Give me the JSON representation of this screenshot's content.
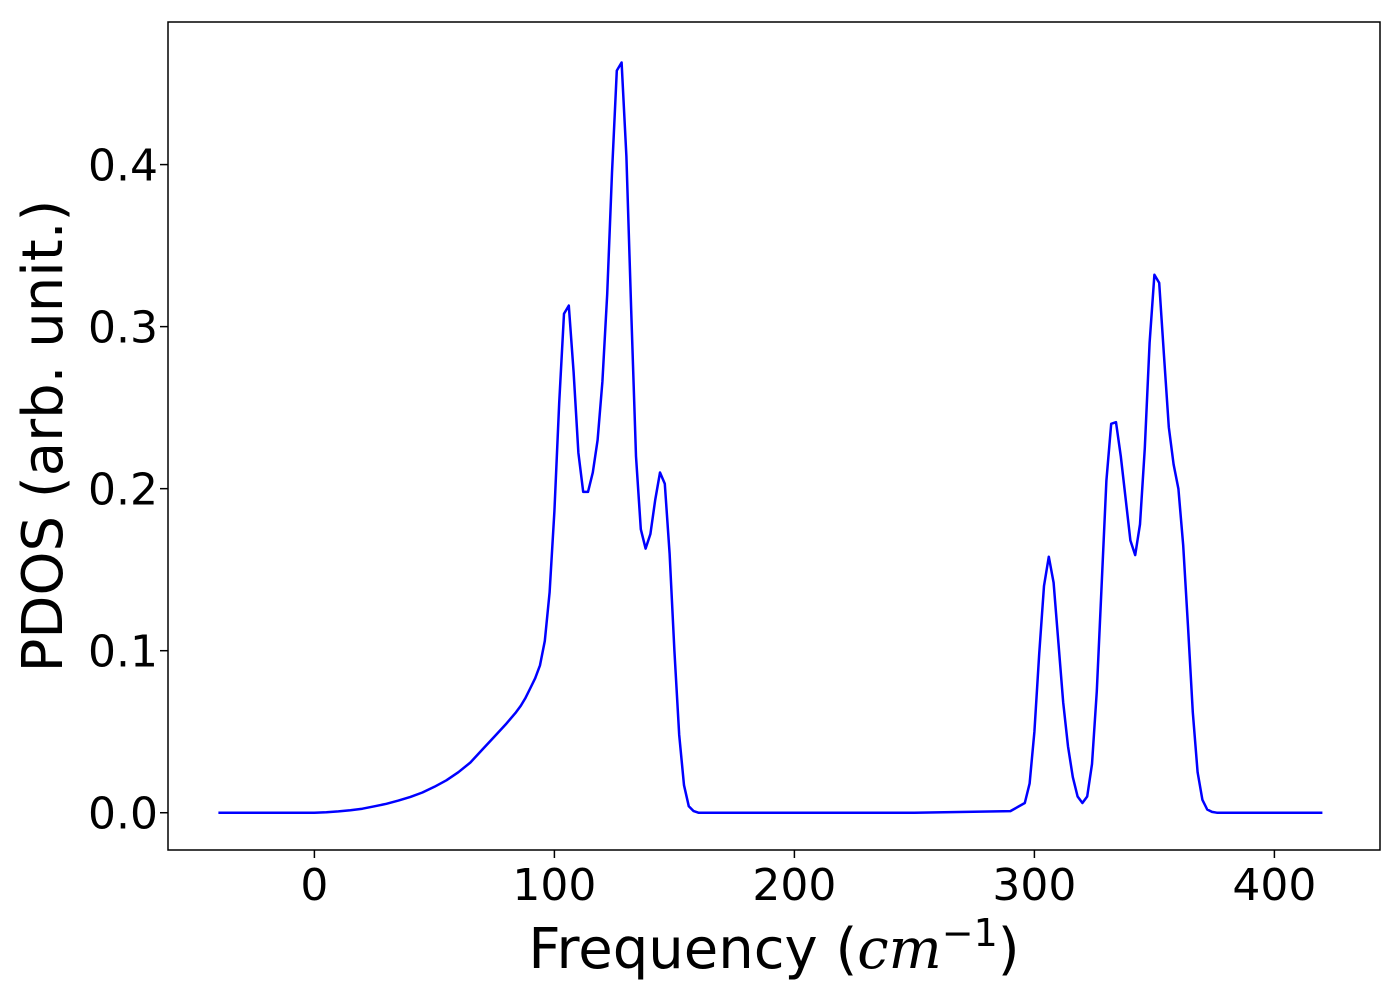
{
  "chart_data": {
    "type": "line",
    "xlabel_prefix": "Frequency (",
    "xlabel_unit": "cm",
    "xlabel_exponent": "−1",
    "xlabel_suffix": ")",
    "ylabel": "PDOS (arb. unit.)",
    "xlim": [
      -61,
      444
    ],
    "ylim": [
      -0.023,
      0.488
    ],
    "xticks": [
      0,
      100,
      200,
      300,
      400
    ],
    "xtick_labels": [
      "0",
      "100",
      "200",
      "300",
      "400"
    ],
    "yticks": [
      0.0,
      0.1,
      0.2,
      0.3,
      0.4
    ],
    "ytick_labels": [
      "0.0",
      "0.1",
      "0.2",
      "0.3",
      "0.4"
    ],
    "grid": false,
    "series": [
      {
        "color": "#0000ff",
        "x": [
          -40,
          -20,
          0,
          5,
          10,
          15,
          20,
          25,
          30,
          35,
          40,
          45,
          50,
          55,
          60,
          65,
          70,
          75,
          80,
          84,
          86,
          88,
          90,
          92,
          94,
          96,
          98,
          100,
          102,
          104,
          106,
          108,
          110,
          112,
          114,
          116,
          118,
          120,
          122,
          124,
          126,
          128,
          130,
          132,
          134,
          136,
          138,
          140,
          142,
          144,
          146,
          148,
          150,
          152,
          154,
          156,
          158,
          160,
          162,
          164,
          166,
          168,
          170,
          180,
          200,
          250,
          290,
          296,
          298,
          300,
          302,
          304,
          306,
          308,
          310,
          312,
          314,
          316,
          318,
          320,
          322,
          324,
          326,
          328,
          330,
          332,
          334,
          336,
          338,
          340,
          342,
          344,
          346,
          348,
          350,
          352,
          354,
          356,
          358,
          360,
          362,
          364,
          366,
          368,
          370,
          372,
          374,
          376,
          378,
          380,
          382,
          384,
          386,
          388,
          390,
          392,
          394,
          396,
          398,
          400,
          410,
          420
        ],
        "y": [
          0,
          0,
          0,
          0.0003,
          0.0008,
          0.0015,
          0.0025,
          0.004,
          0.0055,
          0.0075,
          0.0098,
          0.0125,
          0.016,
          0.02,
          0.025,
          0.031,
          0.039,
          0.047,
          0.055,
          0.062,
          0.066,
          0.071,
          0.077,
          0.083,
          0.091,
          0.106,
          0.136,
          0.186,
          0.253,
          0.308,
          0.313,
          0.272,
          0.222,
          0.198,
          0.198,
          0.21,
          0.23,
          0.266,
          0.32,
          0.395,
          0.458,
          0.463,
          0.405,
          0.31,
          0.22,
          0.175,
          0.163,
          0.172,
          0.193,
          0.21,
          0.203,
          0.16,
          0.1,
          0.048,
          0.017,
          0.004,
          0.001,
          0,
          0,
          0,
          0,
          0,
          0,
          0,
          0,
          0,
          0.001,
          0.006,
          0.018,
          0.05,
          0.098,
          0.14,
          0.158,
          0.142,
          0.105,
          0.068,
          0.041,
          0.022,
          0.01,
          0.006,
          0.01,
          0.03,
          0.075,
          0.14,
          0.205,
          0.24,
          0.241,
          0.22,
          0.194,
          0.168,
          0.159,
          0.178,
          0.225,
          0.29,
          0.332,
          0.327,
          0.282,
          0.238,
          0.215,
          0.2,
          0.165,
          0.115,
          0.062,
          0.025,
          0.008,
          0.002,
          0.0005,
          0,
          0,
          0,
          0,
          0,
          0,
          0,
          0,
          0,
          0,
          0,
          0,
          0,
          0,
          0
        ]
      }
    ]
  }
}
